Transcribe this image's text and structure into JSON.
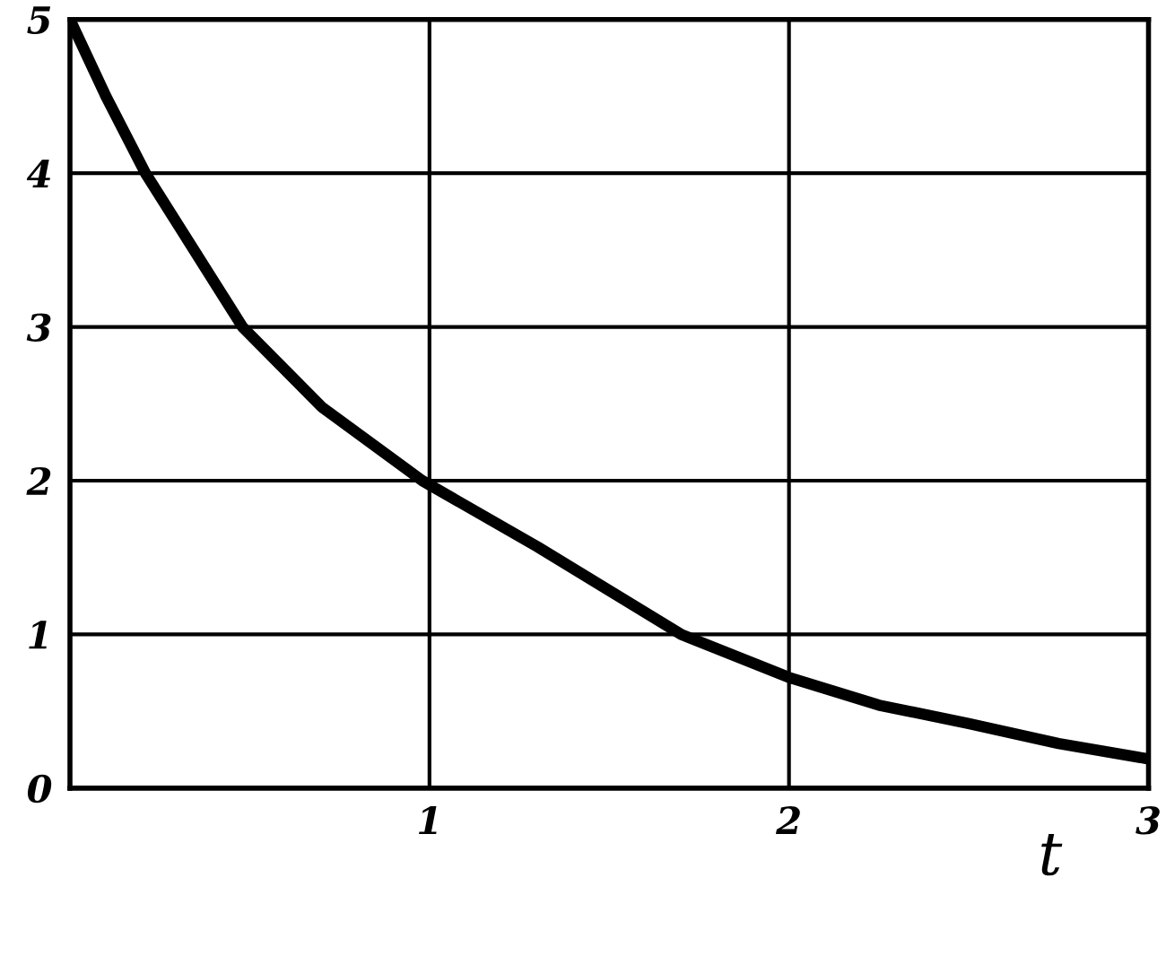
{
  "chart_data": {
    "type": "line",
    "xlabel": "t",
    "x": [
      0,
      0.1,
      0.21,
      0.48,
      0.7,
      0.98,
      1.3,
      1.7,
      2,
      2.25,
      2.5,
      2.75,
      3
    ],
    "series": [
      {
        "color": "#000000",
        "values": [
          5,
          4.5,
          4,
          3,
          2.48,
          2,
          1.57,
          1,
          0.72,
          0.54,
          0.42,
          0.29,
          0.19
        ]
      }
    ],
    "xlim": [
      0,
      3
    ],
    "ylim": [
      0,
      5
    ],
    "xticks": [
      {
        "value": 0,
        "label": null
      },
      1,
      2,
      3
    ],
    "yticks": [
      0,
      1,
      2,
      3,
      4,
      5
    ],
    "grid": true,
    "legend": false,
    "line_style": "solid"
  }
}
